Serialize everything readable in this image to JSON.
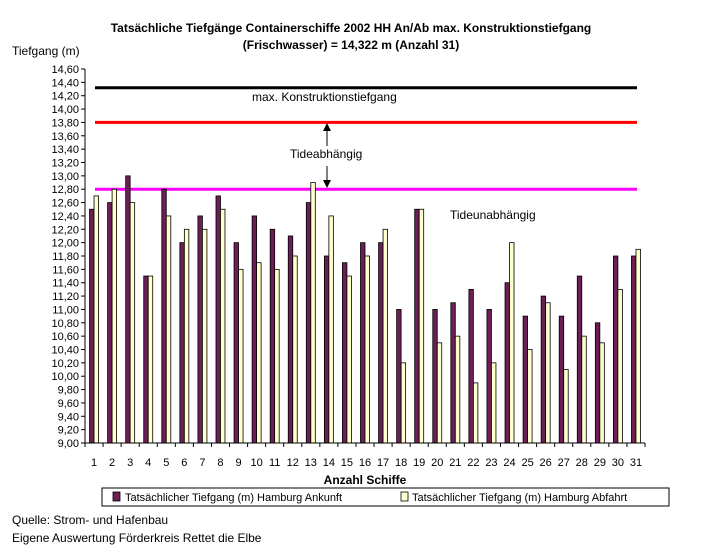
{
  "chart_data": {
    "type": "bar",
    "title": [
      "Tatsächliche Tiefgänge Containerschiffe 2002 HH An/Ab max. Konstruktionstiefgang",
      "(Frischwasser) = 14,322 m (Anzahl 31)"
    ],
    "ylabel": "Tiefgang (m)",
    "xlabel": "Anzahl Schiffe",
    "ylim": [
      9.0,
      14.6
    ],
    "ytick_step": 0.2,
    "categories": [
      "1",
      "2",
      "3",
      "4",
      "5",
      "6",
      "7",
      "8",
      "9",
      "10",
      "11",
      "12",
      "13",
      "14",
      "15",
      "16",
      "17",
      "18",
      "19",
      "20",
      "21",
      "22",
      "23",
      "24",
      "25",
      "26",
      "27",
      "28",
      "29",
      "30",
      "31"
    ],
    "series": [
      {
        "name": "Tatsächlicher Tiefgang (m) Hamburg Ankunft",
        "color": "#6b1f55",
        "values": [
          12.5,
          12.6,
          13.0,
          11.5,
          12.8,
          12.0,
          12.4,
          12.7,
          12.0,
          12.4,
          12.2,
          12.1,
          12.6,
          11.8,
          11.7,
          12.0,
          12.0,
          11.0,
          12.5,
          11.0,
          11.1,
          11.3,
          11.0,
          11.4,
          10.9,
          11.2,
          10.9,
          11.5,
          10.8,
          11.8,
          11.8
        ]
      },
      {
        "name": "Tatsächlicher Tiefgang (m) Hamburg Abfahrt",
        "color": "#ffffcc",
        "values": [
          12.7,
          12.8,
          12.6,
          11.5,
          12.4,
          12.2,
          12.2,
          12.5,
          11.6,
          11.7,
          11.6,
          11.8,
          12.9,
          12.4,
          11.5,
          11.8,
          12.2,
          10.2,
          12.5,
          10.5,
          10.6,
          9.9,
          10.2,
          12.0,
          10.4,
          11.1,
          10.1,
          10.6,
          10.5,
          11.3,
          11.9
        ]
      }
    ],
    "reference_lines": [
      {
        "value": 14.32,
        "color": "#000000",
        "label": "max. Konstruktionstiefgang"
      },
      {
        "value": 13.8,
        "color": "#ff0000"
      },
      {
        "value": 12.8,
        "color": "#ff00ff"
      }
    ],
    "annotations": {
      "tide_dependent": "Tideabhängig",
      "tide_independent": "Tideunabhängig"
    },
    "grid": false,
    "legend_position": "bottom"
  },
  "source_lines": [
    "Quelle: Strom- und Hafenbau",
    "Eigene Auswertung Förderkreis Rettet die Elbe"
  ]
}
